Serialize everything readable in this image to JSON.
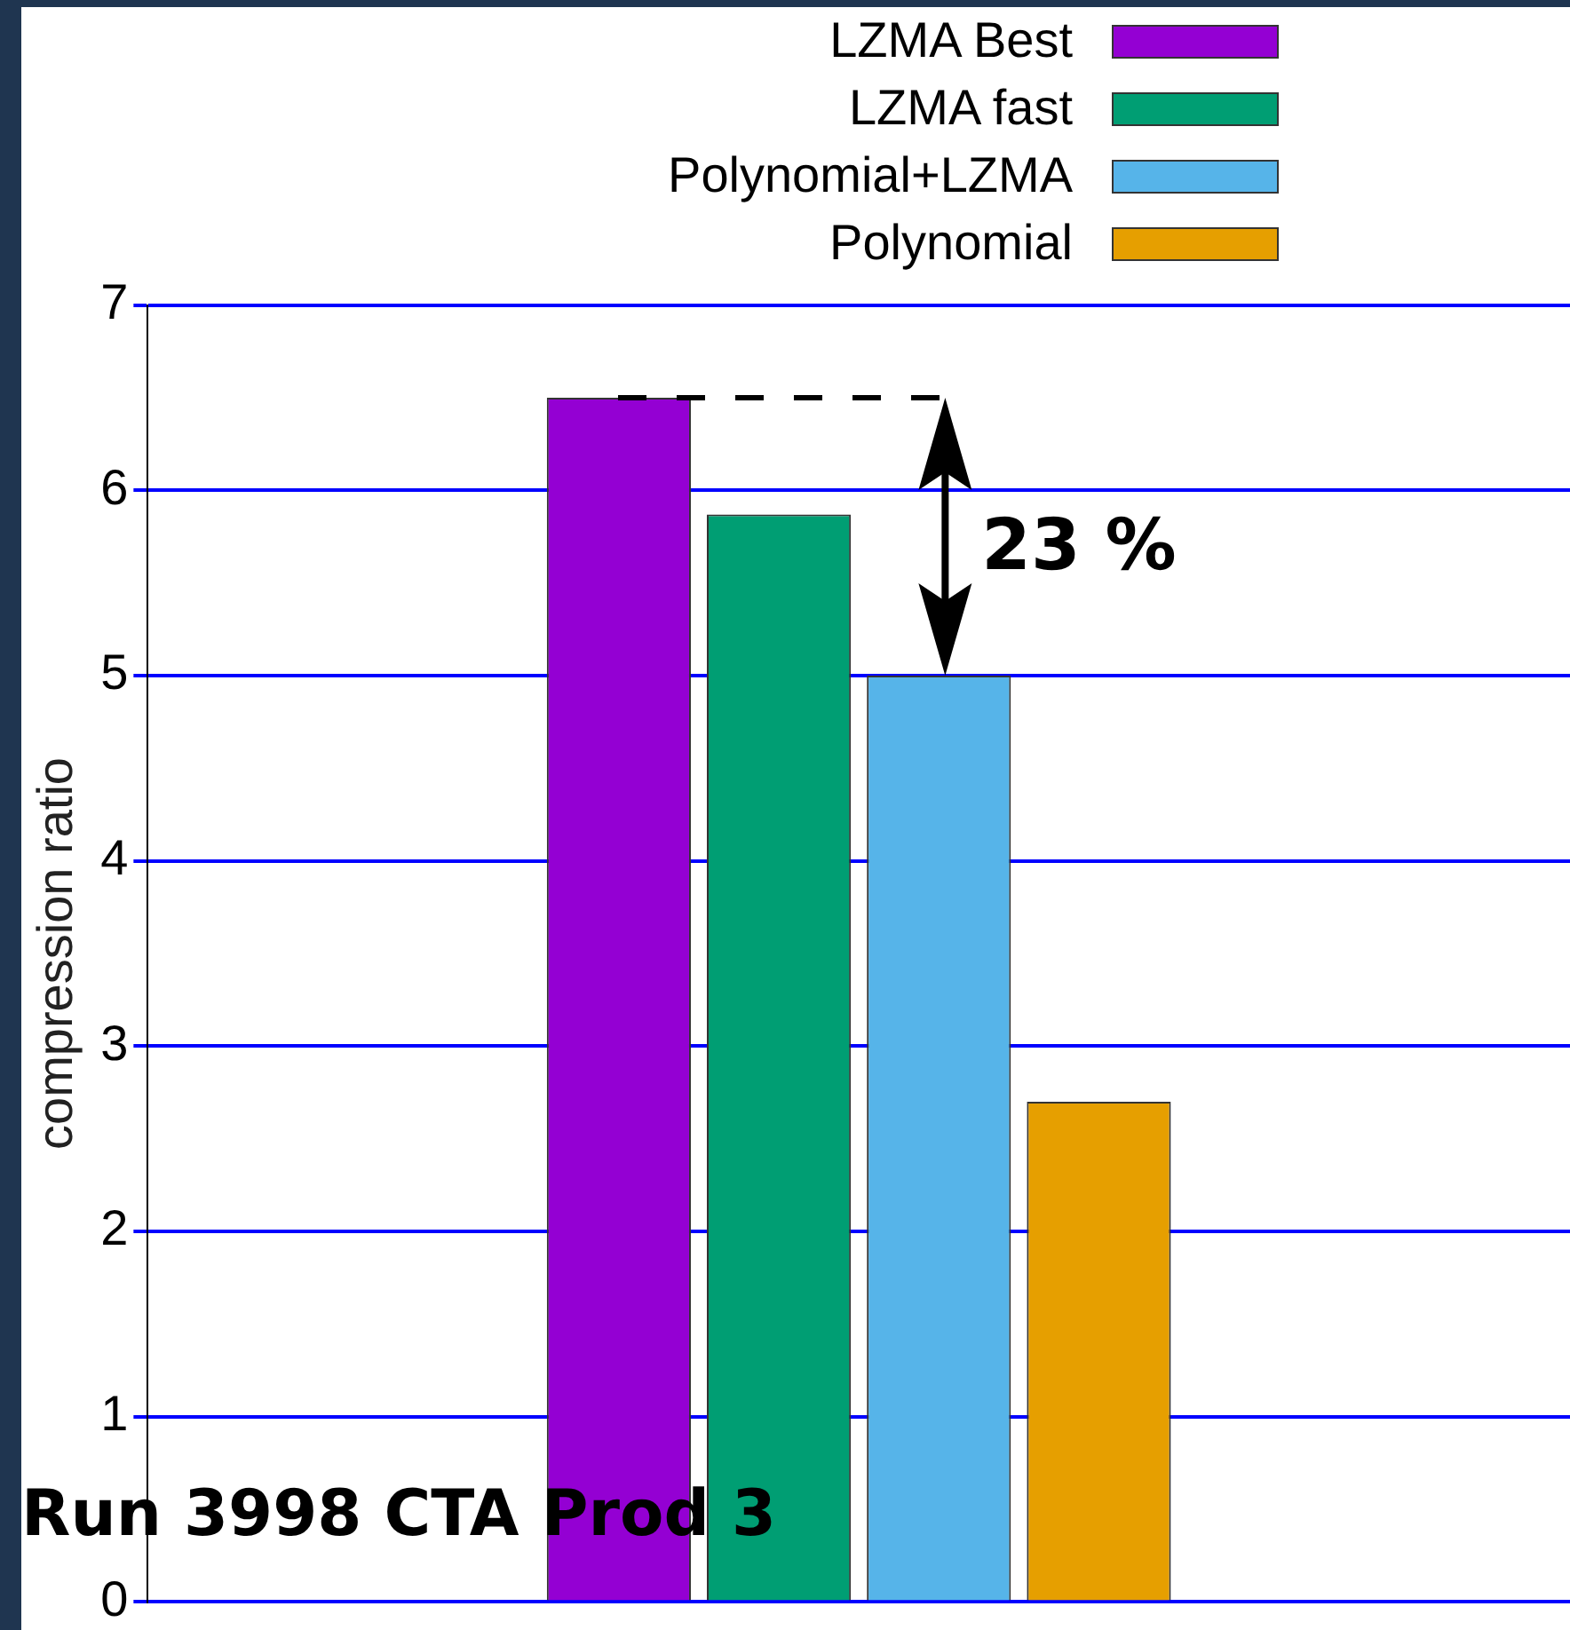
{
  "chart_data": {
    "type": "bar",
    "ylabel": "compression ratio",
    "categories": [
      null
    ],
    "series": [
      {
        "name": "LZMA Best",
        "color": "#9400d3",
        "values": [
          6.5
        ]
      },
      {
        "name": "LZMA fast",
        "color": "#009e73",
        "values": [
          5.87
        ]
      },
      {
        "name": "Polynomial+LZMA",
        "color": "#56b4e9",
        "values": [
          5.0
        ]
      },
      {
        "name": "Polynomial",
        "color": "#e69f00",
        "values": [
          2.7
        ]
      }
    ],
    "ylim": [
      0,
      7
    ],
    "yticks": [
      0,
      1,
      2,
      3,
      4,
      5,
      6,
      7
    ],
    "grid": "y",
    "legend": "top right",
    "annotations": [
      "23 %",
      "Run 3998 CTA Prod 3"
    ]
  }
}
